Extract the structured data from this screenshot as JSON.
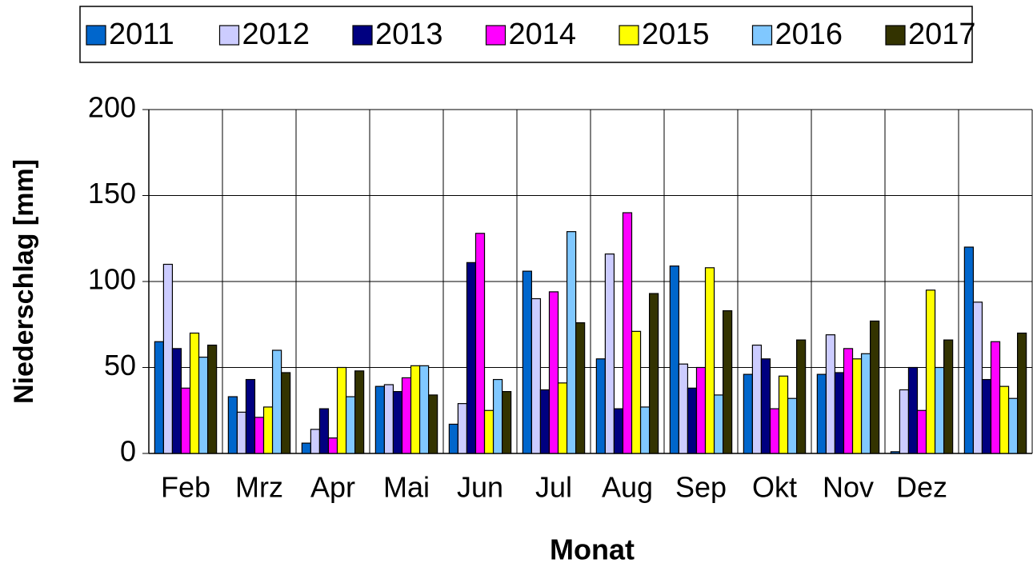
{
  "chart_data": {
    "type": "bar",
    "ylabel": "Niederschlag [mm]",
    "xlabel": "Monat",
    "categories": [
      "Feb",
      "Mrz",
      "Apr",
      "Mai",
      "Jun",
      "Jul",
      "Aug",
      "Sep",
      "Okt",
      "Nov",
      "Dez",
      null
    ],
    "series": [
      {
        "name": "2011",
        "color": "#0066cc",
        "values": [
          65,
          33,
          6,
          39,
          17,
          106,
          55,
          109,
          46,
          46,
          1,
          120
        ]
      },
      {
        "name": "2012",
        "color": "#ccccff",
        "values": [
          110,
          24,
          14,
          40,
          29,
          90,
          116,
          52,
          63,
          69,
          37,
          88
        ]
      },
      {
        "name": "2013",
        "color": "#000080",
        "values": [
          61,
          43,
          26,
          36,
          111,
          37,
          26,
          38,
          55,
          47,
          50,
          43
        ]
      },
      {
        "name": "2014",
        "color": "#ff00ff",
        "values": [
          38,
          21,
          9,
          44,
          128,
          94,
          140,
          50,
          26,
          61,
          25,
          65
        ]
      },
      {
        "name": "2015",
        "color": "#ffff00",
        "values": [
          70,
          27,
          50,
          51,
          25,
          41,
          71,
          108,
          45,
          55,
          95,
          39
        ]
      },
      {
        "name": "2016",
        "color": "#80c8ff",
        "values": [
          56,
          60,
          33,
          51,
          43,
          129,
          27,
          34,
          32,
          58,
          50,
          32
        ]
      },
      {
        "name": "2017",
        "color": "#333300",
        "values": [
          63,
          47,
          48,
          34,
          36,
          76,
          93,
          83,
          66,
          77,
          66,
          70
        ]
      }
    ],
    "ylim": [
      0,
      200
    ],
    "yticks": [
      0,
      50,
      100,
      150,
      200
    ],
    "grid": true,
    "legend": "top"
  }
}
